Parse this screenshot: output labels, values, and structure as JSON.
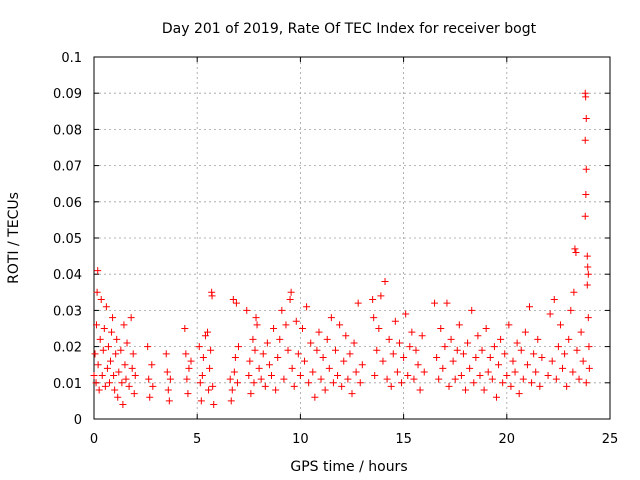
{
  "chart_data": {
    "type": "scatter",
    "title": "Day 201 of 2019, Rate Of TEC Index for receiver bogt",
    "xlabel": "GPS time / hours",
    "ylabel": "ROTI / TECUs",
    "xlim": [
      0,
      25
    ],
    "ylim": [
      0,
      0.1
    ],
    "x_ticks": [
      "0",
      "5",
      "10",
      "15",
      "20",
      "25"
    ],
    "y_ticks": [
      "0",
      "0.01",
      "0.02",
      "0.03",
      "0.04",
      "0.05",
      "0.06",
      "0.07",
      "0.08",
      "0.09",
      "0.1"
    ],
    "grid": true,
    "legend": "none",
    "marker": "+",
    "color": "#ff0000",
    "series": [
      {
        "points": [
          [
            0.0,
            0.012
          ],
          [
            0.05,
            0.018
          ],
          [
            0.1,
            0.01
          ],
          [
            0.12,
            0.026
          ],
          [
            0.15,
            0.035
          ],
          [
            0.18,
            0.041
          ],
          [
            0.2,
            0.015
          ],
          [
            0.25,
            0.008
          ],
          [
            0.3,
            0.022
          ],
          [
            0.35,
            0.033
          ],
          [
            0.4,
            0.012
          ],
          [
            0.45,
            0.019
          ],
          [
            0.5,
            0.025
          ],
          [
            0.55,
            0.009
          ],
          [
            0.6,
            0.031
          ],
          [
            0.65,
            0.014
          ],
          [
            0.7,
            0.02
          ],
          [
            0.75,
            0.01
          ],
          [
            0.8,
            0.016
          ],
          [
            0.85,
            0.024
          ],
          [
            0.9,
            0.028
          ],
          [
            0.95,
            0.012
          ],
          [
            1.0,
            0.008
          ],
          [
            1.05,
            0.018
          ],
          [
            1.1,
            0.022
          ],
          [
            1.15,
            0.006
          ],
          [
            1.2,
            0.013
          ],
          [
            1.3,
            0.019
          ],
          [
            1.35,
            0.01
          ],
          [
            1.4,
            0.004
          ],
          [
            1.45,
            0.026
          ],
          [
            1.5,
            0.015
          ],
          [
            1.55,
            0.011
          ],
          [
            1.6,
            0.021
          ],
          [
            1.7,
            0.009
          ],
          [
            1.8,
            0.028
          ],
          [
            1.85,
            0.014
          ],
          [
            1.9,
            0.018
          ],
          [
            1.95,
            0.007
          ],
          [
            2.0,
            0.012
          ],
          [
            2.6,
            0.02
          ],
          [
            2.65,
            0.011
          ],
          [
            2.7,
            0.006
          ],
          [
            2.8,
            0.015
          ],
          [
            2.85,
            0.009
          ],
          [
            3.5,
            0.018
          ],
          [
            3.55,
            0.013
          ],
          [
            3.6,
            0.008
          ],
          [
            3.65,
            0.005
          ],
          [
            3.7,
            0.011
          ],
          [
            4.4,
            0.025
          ],
          [
            4.45,
            0.018
          ],
          [
            4.5,
            0.011
          ],
          [
            4.55,
            0.007
          ],
          [
            4.6,
            0.014
          ],
          [
            4.7,
            0.016
          ],
          [
            5.1,
            0.02
          ],
          [
            5.15,
            0.01
          ],
          [
            5.2,
            0.005
          ],
          [
            5.25,
            0.012
          ],
          [
            5.3,
            0.017
          ],
          [
            5.4,
            0.023
          ],
          [
            5.5,
            0.024
          ],
          [
            5.55,
            0.008
          ],
          [
            5.6,
            0.014
          ],
          [
            5.65,
            0.019
          ],
          [
            5.7,
            0.035
          ],
          [
            5.72,
            0.034
          ],
          [
            5.75,
            0.009
          ],
          [
            5.8,
            0.004
          ],
          [
            6.6,
            0.011
          ],
          [
            6.65,
            0.005
          ],
          [
            6.7,
            0.008
          ],
          [
            6.75,
            0.033
          ],
          [
            6.8,
            0.013
          ],
          [
            6.85,
            0.017
          ],
          [
            6.9,
            0.032
          ],
          [
            6.95,
            0.01
          ],
          [
            7.0,
            0.02
          ],
          [
            7.4,
            0.03
          ],
          [
            7.5,
            0.012
          ],
          [
            7.55,
            0.016
          ],
          [
            7.6,
            0.007
          ],
          [
            7.7,
            0.022
          ],
          [
            7.75,
            0.01
          ],
          [
            7.8,
            0.019
          ],
          [
            7.85,
            0.028
          ],
          [
            7.9,
            0.026
          ],
          [
            8.0,
            0.014
          ],
          [
            8.1,
            0.011
          ],
          [
            8.2,
            0.018
          ],
          [
            8.3,
            0.009
          ],
          [
            8.4,
            0.021
          ],
          [
            8.5,
            0.015
          ],
          [
            8.6,
            0.012
          ],
          [
            8.7,
            0.025
          ],
          [
            8.8,
            0.008
          ],
          [
            8.9,
            0.017
          ],
          [
            9.0,
            0.022
          ],
          [
            9.1,
            0.03
          ],
          [
            9.2,
            0.011
          ],
          [
            9.3,
            0.026
          ],
          [
            9.4,
            0.019
          ],
          [
            9.5,
            0.033
          ],
          [
            9.55,
            0.035
          ],
          [
            9.6,
            0.014
          ],
          [
            9.7,
            0.009
          ],
          [
            9.8,
            0.027
          ],
          [
            9.9,
            0.018
          ],
          [
            10.0,
            0.012
          ],
          [
            10.1,
            0.025
          ],
          [
            10.2,
            0.016
          ],
          [
            10.3,
            0.031
          ],
          [
            10.4,
            0.01
          ],
          [
            10.5,
            0.021
          ],
          [
            10.6,
            0.013
          ],
          [
            10.7,
            0.006
          ],
          [
            10.8,
            0.019
          ],
          [
            10.9,
            0.024
          ],
          [
            11.0,
            0.011
          ],
          [
            11.1,
            0.017
          ],
          [
            11.2,
            0.008
          ],
          [
            11.3,
            0.022
          ],
          [
            11.4,
            0.014
          ],
          [
            11.5,
            0.028
          ],
          [
            11.6,
            0.01
          ],
          [
            11.7,
            0.019
          ],
          [
            11.8,
            0.012
          ],
          [
            11.9,
            0.026
          ],
          [
            12.0,
            0.009
          ],
          [
            12.1,
            0.016
          ],
          [
            12.2,
            0.023
          ],
          [
            12.3,
            0.011
          ],
          [
            12.4,
            0.018
          ],
          [
            12.5,
            0.007
          ],
          [
            12.6,
            0.021
          ],
          [
            12.7,
            0.013
          ],
          [
            12.8,
            0.032
          ],
          [
            12.9,
            0.01
          ],
          [
            13.0,
            0.015
          ],
          [
            13.5,
            0.033
          ],
          [
            13.55,
            0.028
          ],
          [
            13.6,
            0.012
          ],
          [
            13.7,
            0.019
          ],
          [
            13.8,
            0.025
          ],
          [
            13.9,
            0.034
          ],
          [
            14.0,
            0.016
          ],
          [
            14.1,
            0.038
          ],
          [
            14.2,
            0.011
          ],
          [
            14.3,
            0.022
          ],
          [
            14.4,
            0.009
          ],
          [
            14.5,
            0.018
          ],
          [
            14.6,
            0.027
          ],
          [
            14.7,
            0.013
          ],
          [
            14.8,
            0.021
          ],
          [
            14.9,
            0.01
          ],
          [
            15.0,
            0.017
          ],
          [
            15.1,
            0.029
          ],
          [
            15.2,
            0.012
          ],
          [
            15.3,
            0.02
          ],
          [
            15.4,
            0.024
          ],
          [
            15.5,
            0.011
          ],
          [
            15.6,
            0.019
          ],
          [
            15.7,
            0.015
          ],
          [
            15.8,
            0.008
          ],
          [
            15.9,
            0.023
          ],
          [
            16.0,
            0.013
          ],
          [
            16.5,
            0.032
          ],
          [
            16.6,
            0.017
          ],
          [
            16.7,
            0.011
          ],
          [
            16.8,
            0.025
          ],
          [
            16.9,
            0.014
          ],
          [
            17.0,
            0.02
          ],
          [
            17.1,
            0.032
          ],
          [
            17.2,
            0.009
          ],
          [
            17.3,
            0.022
          ],
          [
            17.4,
            0.016
          ],
          [
            17.5,
            0.011
          ],
          [
            17.6,
            0.019
          ],
          [
            17.7,
            0.026
          ],
          [
            17.8,
            0.012
          ],
          [
            17.9,
            0.018
          ],
          [
            18.0,
            0.008
          ],
          [
            18.1,
            0.021
          ],
          [
            18.2,
            0.014
          ],
          [
            18.3,
            0.03
          ],
          [
            18.4,
            0.01
          ],
          [
            18.5,
            0.017
          ],
          [
            18.6,
            0.023
          ],
          [
            18.7,
            0.012
          ],
          [
            18.8,
            0.019
          ],
          [
            18.9,
            0.008
          ],
          [
            19.0,
            0.025
          ],
          [
            19.1,
            0.013
          ],
          [
            19.2,
            0.017
          ],
          [
            19.3,
            0.011
          ],
          [
            19.4,
            0.02
          ],
          [
            19.5,
            0.006
          ],
          [
            19.6,
            0.015
          ],
          [
            19.7,
            0.022
          ],
          [
            19.8,
            0.01
          ],
          [
            19.9,
            0.018
          ],
          [
            20.0,
            0.012
          ],
          [
            20.1,
            0.026
          ],
          [
            20.2,
            0.009
          ],
          [
            20.3,
            0.016
          ],
          [
            20.4,
            0.013
          ],
          [
            20.5,
            0.021
          ],
          [
            20.6,
            0.007
          ],
          [
            20.7,
            0.019
          ],
          [
            20.8,
            0.011
          ],
          [
            20.9,
            0.024
          ],
          [
            21.0,
            0.015
          ],
          [
            21.1,
            0.031
          ],
          [
            21.2,
            0.01
          ],
          [
            21.3,
            0.018
          ],
          [
            21.4,
            0.013
          ],
          [
            21.5,
            0.022
          ],
          [
            21.6,
            0.009
          ],
          [
            21.7,
            0.017
          ],
          [
            22.0,
            0.012
          ],
          [
            22.1,
            0.029
          ],
          [
            22.2,
            0.016
          ],
          [
            22.3,
            0.033
          ],
          [
            22.4,
            0.011
          ],
          [
            22.5,
            0.02
          ],
          [
            22.6,
            0.026
          ],
          [
            22.7,
            0.014
          ],
          [
            22.8,
            0.018
          ],
          [
            22.9,
            0.009
          ],
          [
            23.0,
            0.022
          ],
          [
            23.1,
            0.03
          ],
          [
            23.2,
            0.013
          ],
          [
            23.25,
            0.035
          ],
          [
            23.3,
            0.047
          ],
          [
            23.35,
            0.046
          ],
          [
            23.4,
            0.019
          ],
          [
            23.5,
            0.011
          ],
          [
            23.6,
            0.024
          ],
          [
            23.7,
            0.016
          ],
          [
            23.8,
            0.09
          ],
          [
            23.82,
            0.089
          ],
          [
            23.85,
            0.083
          ],
          [
            23.8,
            0.077
          ],
          [
            23.85,
            0.069
          ],
          [
            23.83,
            0.062
          ],
          [
            23.8,
            0.056
          ],
          [
            23.9,
            0.045
          ],
          [
            23.92,
            0.042
          ],
          [
            23.95,
            0.04
          ],
          [
            23.9,
            0.037
          ],
          [
            23.95,
            0.028
          ],
          [
            23.98,
            0.02
          ],
          [
            24.0,
            0.014
          ],
          [
            23.85,
            0.01
          ]
        ]
      }
    ]
  }
}
